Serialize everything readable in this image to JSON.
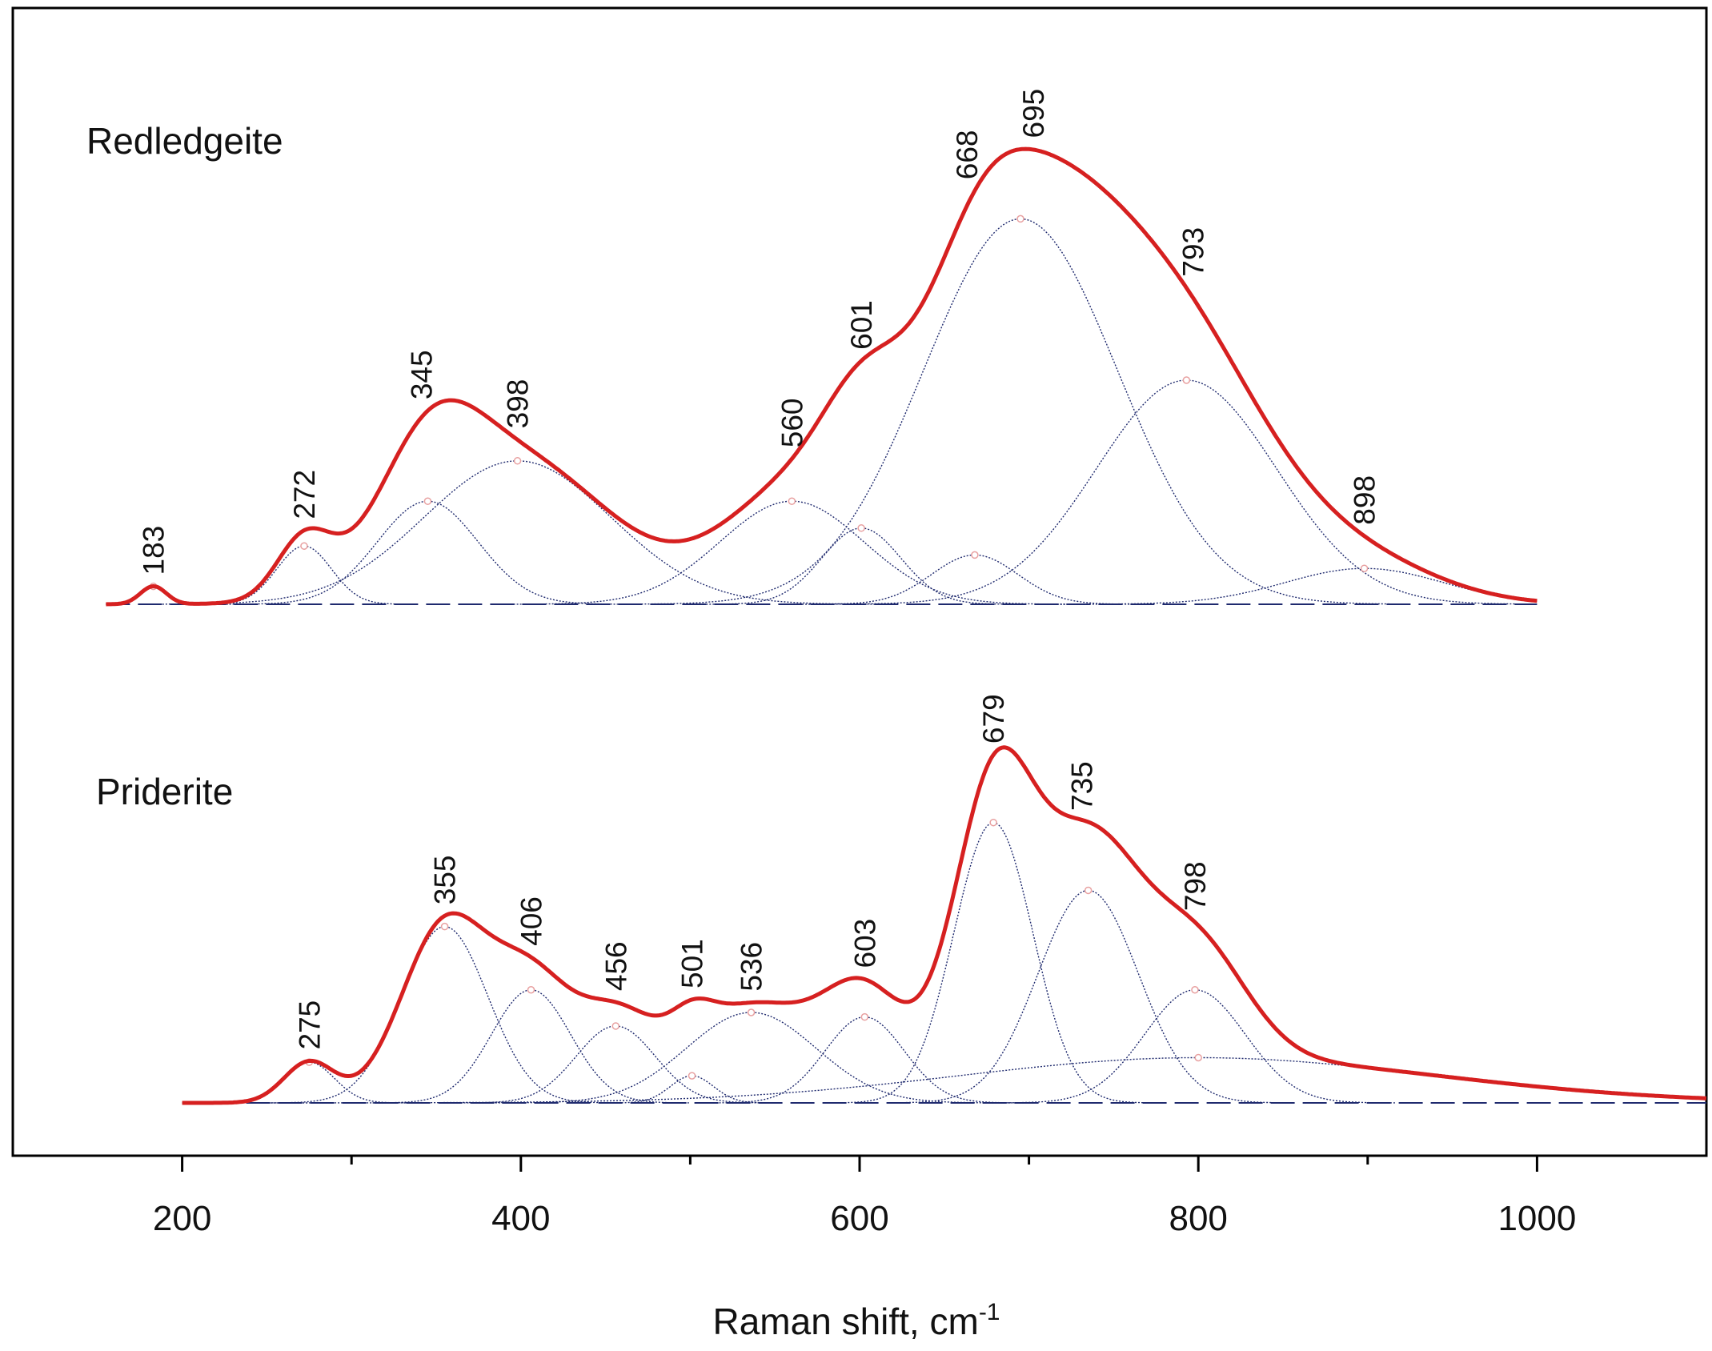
{
  "chart_data": {
    "type": "line",
    "xlabel": "Raman shift, cm",
    "xlabel_superscript": "-1",
    "xlim": [
      100,
      1100
    ],
    "x_ticks": [
      200,
      400,
      600,
      800,
      1000
    ],
    "x_minor_ticks": [
      300,
      500,
      700,
      900
    ],
    "grid": false,
    "colors": {
      "envelope": "#d62020",
      "components": "#1f2a6e",
      "markers": "#e8a0a0"
    },
    "spectra": [
      {
        "label": "Redledgeite",
        "x_range": [
          155,
          1000
        ],
        "peak_labels": [
          "183",
          "272",
          "345",
          "398",
          "560",
          "601",
          "668",
          "695",
          "793",
          "898"
        ],
        "components": [
          {
            "center": 183,
            "height": 0.04,
            "fwhm": 18
          },
          {
            "center": 272,
            "height": 0.13,
            "fwhm": 38
          },
          {
            "center": 345,
            "height": 0.23,
            "fwhm": 70
          },
          {
            "center": 398,
            "height": 0.32,
            "fwhm": 130
          },
          {
            "center": 560,
            "height": 0.23,
            "fwhm": 100
          },
          {
            "center": 601,
            "height": 0.17,
            "fwhm": 55
          },
          {
            "center": 668,
            "height": 0.11,
            "fwhm": 60
          },
          {
            "center": 695,
            "height": 0.86,
            "fwhm": 135
          },
          {
            "center": 793,
            "height": 0.5,
            "fwhm": 125
          },
          {
            "center": 898,
            "height": 0.08,
            "fwhm": 110
          }
        ]
      },
      {
        "label": "Priderite",
        "x_range": [
          200,
          1100
        ],
        "peak_labels": [
          "275",
          "355",
          "406",
          "456",
          "501",
          "536",
          "603",
          "679",
          "735",
          "798"
        ],
        "components": [
          {
            "center": 275,
            "height": 0.09,
            "fwhm": 35
          },
          {
            "center": 355,
            "height": 0.39,
            "fwhm": 60
          },
          {
            "center": 406,
            "height": 0.25,
            "fwhm": 55
          },
          {
            "center": 456,
            "height": 0.17,
            "fwhm": 55
          },
          {
            "center": 501,
            "height": 0.06,
            "fwhm": 30
          },
          {
            "center": 536,
            "height": 0.2,
            "fwhm": 90
          },
          {
            "center": 603,
            "height": 0.19,
            "fwhm": 55
          },
          {
            "center": 679,
            "height": 0.62,
            "fwhm": 55
          },
          {
            "center": 735,
            "height": 0.47,
            "fwhm": 70
          },
          {
            "center": 798,
            "height": 0.25,
            "fwhm": 70
          },
          {
            "center": 800,
            "height": 0.1,
            "fwhm": 330
          }
        ]
      }
    ]
  }
}
